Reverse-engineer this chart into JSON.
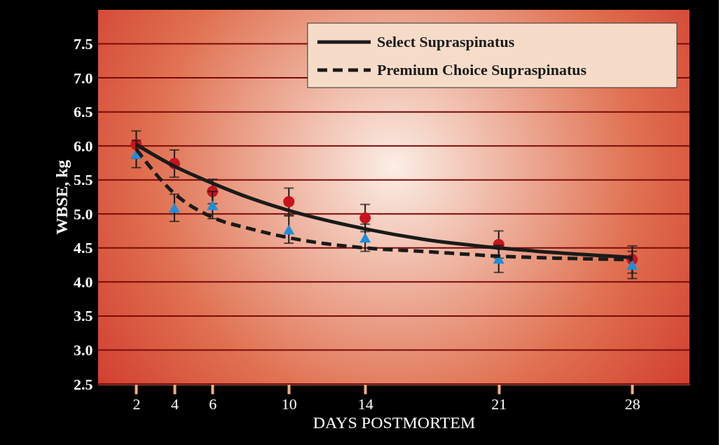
{
  "chart_data": {
    "type": "scatter",
    "xlabel": "DAYS POSTMORTEM",
    "ylabel": "WBSE, kg",
    "xlim": [
      0,
      31
    ],
    "xticks": [
      2,
      4,
      6,
      10,
      14,
      21,
      28
    ],
    "ylim": [
      2.5,
      8.0
    ],
    "yticks": [
      2.5,
      {
        "value": 3,
        "label": "3.0"
      },
      3.5,
      {
        "value": 4,
        "label": "4.0"
      },
      4.5,
      {
        "value": 5,
        "label": "5.0"
      },
      5.5,
      {
        "value": 6,
        "label": "6.0"
      },
      6.5,
      {
        "value": 7,
        "label": "7.0"
      },
      7.5
    ],
    "grid": "y",
    "legend": "top right",
    "series": [
      {
        "type": "scatter",
        "marker": "circle",
        "color": "#c8141e",
        "x": [
          2,
          4,
          6,
          10,
          14,
          21,
          28
        ],
        "values": [
          6.02,
          5.74,
          5.33,
          5.18,
          4.94,
          4.55,
          4.33
        ],
        "errors": [
          0.2,
          0.2,
          0.18,
          0.2,
          0.2,
          0.2,
          0.2
        ]
      },
      {
        "type": "scatter",
        "marker": "triangle",
        "color": "#1e8ed8",
        "x": [
          2,
          4,
          6,
          10,
          14,
          21,
          28
        ],
        "values": [
          5.88,
          5.09,
          5.13,
          4.77,
          4.65,
          4.34,
          4.25
        ],
        "errors": [
          0.2,
          0.2,
          0.2,
          0.2,
          0.2,
          0.2,
          0.2
        ]
      },
      {
        "type": "line",
        "name": "Select Supraspinatus",
        "color": "#1a1a1a",
        "line_style": "solid",
        "x": [
          2,
          4,
          6,
          8,
          10,
          14,
          17,
          21,
          24,
          28
        ],
        "values": [
          6.02,
          5.7,
          5.45,
          5.23,
          5.05,
          4.78,
          4.63,
          4.5,
          4.43,
          4.36
        ]
      },
      {
        "type": "line",
        "name": "Premium Choice Supraspinatus",
        "color": "#1a1a1a",
        "line_style": "dashed",
        "x": [
          2,
          4,
          6,
          8,
          10,
          14,
          17,
          21,
          24,
          28
        ],
        "values": [
          5.95,
          5.3,
          4.95,
          4.78,
          4.65,
          4.5,
          4.45,
          4.38,
          4.35,
          4.33
        ]
      }
    ]
  }
}
